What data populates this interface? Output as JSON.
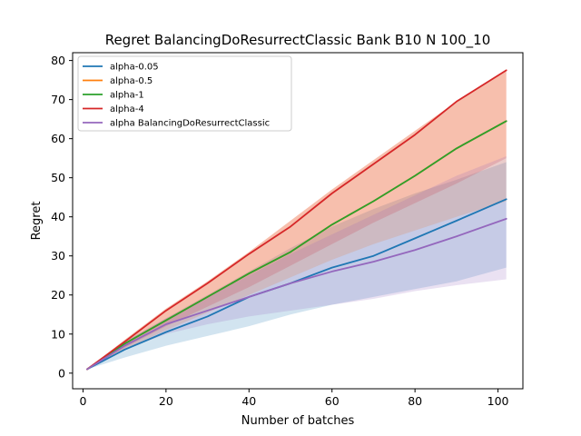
{
  "chart_data": {
    "type": "line",
    "title": "Regret BalancingDoResurrectClassic Bank B10 N 100_10",
    "xlabel": "Number of batches",
    "ylabel": "Regret",
    "xlim": [
      -2.5,
      106
    ],
    "ylim": [
      -4,
      82
    ],
    "xticks": [
      0,
      20,
      40,
      60,
      80,
      100
    ],
    "yticks": [
      0,
      10,
      20,
      30,
      40,
      50,
      60,
      70,
      80
    ],
    "legend_position": "top-left",
    "grid": false,
    "x": [
      1,
      10,
      20,
      30,
      40,
      50,
      60,
      70,
      80,
      90,
      102
    ],
    "series": [
      {
        "name": "alpha-0.05",
        "color": "#1f77b4",
        "values": [
          1,
          6,
          10.5,
          14.5,
          19.5,
          23,
          27,
          30,
          34.5,
          39,
          44.5
        ],
        "band_lower": [
          1,
          4,
          7,
          9.5,
          12,
          15,
          17.5,
          19.5,
          21.5,
          23.5,
          27
        ],
        "band_upper": [
          1,
          8,
          14,
          20,
          26,
          32,
          37.5,
          42,
          46,
          49.5,
          54
        ]
      },
      {
        "name": "alpha-0.5",
        "color": "#ff7f0e",
        "values": [
          1,
          7.5,
          13.5,
          19.5,
          25.5,
          31,
          38,
          44,
          50.5,
          57.5,
          64.5
        ],
        "band_lower": [
          1,
          6,
          11,
          15.5,
          20,
          24.5,
          29,
          33,
          36.5,
          40,
          44
        ],
        "band_upper": [
          1,
          8.5,
          16.5,
          23.5,
          31,
          39,
          47,
          54.5,
          62,
          69.5,
          77.5
        ]
      },
      {
        "name": "alpha-1",
        "color": "#2ca02c",
        "values": [
          1,
          7.5,
          13.5,
          19.5,
          25.5,
          31,
          38,
          44,
          50.5,
          57.5,
          64.5
        ],
        "band_lower": [],
        "band_upper": []
      },
      {
        "name": "alpha-4",
        "color": "#d62728",
        "values": [
          1,
          8,
          16,
          23,
          30.5,
          37.5,
          46,
          53.5,
          61,
          69.5,
          77.5
        ],
        "band_lower": [
          1,
          6.5,
          12,
          17,
          22,
          27.5,
          33,
          38.5,
          43.5,
          48.5,
          55
        ],
        "band_upper": [
          1,
          8.5,
          16.5,
          23.5,
          31,
          39,
          47,
          54.5,
          62,
          69.5,
          77.5
        ]
      },
      {
        "name": "alpha BalancingDoResurrectClassic",
        "color": "#9467bd",
        "values": [
          1,
          7,
          12.5,
          16,
          19.5,
          23,
          26,
          28.5,
          31.5,
          35,
          39.5
        ],
        "band_lower": [
          1,
          6,
          10,
          12.5,
          14.5,
          16,
          17.5,
          19,
          21,
          22.5,
          24
        ],
        "band_upper": [
          1,
          8,
          14,
          19.5,
          25,
          30.5,
          35.5,
          40.5,
          45.5,
          50.5,
          55.5
        ]
      }
    ]
  }
}
